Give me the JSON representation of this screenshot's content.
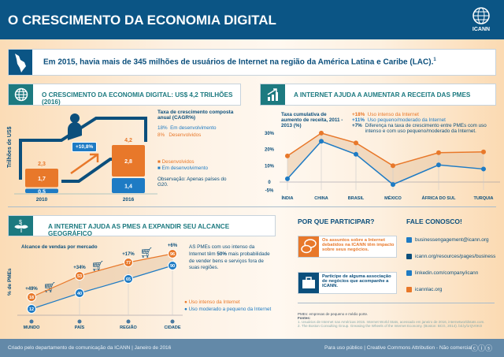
{
  "header": {
    "title": "O CRESCIMENTO DA ECONOMIA DIGITAL",
    "logo_text": "ICANN"
  },
  "banner": {
    "text": "Em 2015, havia mais de 345 milhões de usuários de Internet na região da América Latina e Caribe (LAC).",
    "footnote": "1"
  },
  "section1": {
    "title": "O CRESCIMENTO DA ECONOMIA DIGITAL: US$ 4,2 TRILHÕES (2016)",
    "chart_data": {
      "type": "bar",
      "stacked": true,
      "ylabel": "Trilhões de US$",
      "categories": [
        "2010",
        "2016"
      ],
      "series": [
        {
          "name": "Em desenvolvimento",
          "values": [
            0.5,
            1.4
          ],
          "color": "#1e7bc4"
        },
        {
          "name": "Desenvolvidos",
          "values": [
            1.7,
            2.8
          ],
          "color": "#e8782a"
        }
      ],
      "value_labels": {
        "Em desenvolvimento": [
          "0,5",
          "1,4"
        ],
        "Desenvolvidos": [
          "1,7",
          "2,8"
        ]
      },
      "totals": [
        "2,3",
        "4,2"
      ],
      "growth_label": "+10,8%"
    },
    "cagr_title": "Taxa de crescimento composta anual (CAGR%)",
    "cagr": [
      {
        "pct": "18%",
        "label": "Em desenvolvimento"
      },
      {
        "pct": "8%",
        "label": "Desenvolvidos"
      }
    ],
    "legend": [
      "Desenvolvidos",
      "Em desenvolvimento"
    ],
    "note": "Observação: Apenas países do G20."
  },
  "section2": {
    "title": "A INTERNET AJUDA A AUMENTAR A RECEITA DAS PMES",
    "chart_data": {
      "type": "line",
      "title": "Taxa cumulativa de aumento de receita, 2011 - 2013 (%)",
      "categories": [
        "ÍNDIA",
        "CHINA",
        "BRASIL",
        "MÉXICO",
        "ÁFRICA DO SUL",
        "TURQUIA"
      ],
      "yticks": [
        "30%",
        "20%",
        "10%",
        "0",
        "-5%"
      ],
      "ylim": [
        -5,
        30
      ],
      "series": [
        {
          "name": "Uso intenso da Internet",
          "values": [
            16,
            30,
            24,
            10,
            18,
            18.5
          ],
          "color": "#e8782a"
        },
        {
          "name": "Uso pequeno/moderado da Internet",
          "values": [
            2,
            25,
            17,
            -1.5,
            10.5,
            8
          ],
          "color": "#1e7bc4"
        }
      ]
    },
    "legend": [
      {
        "pct": "+18%",
        "label": "Uso intenso da Internet"
      },
      {
        "pct": "+11%",
        "label": "Uso pequeno/moderado da Internet"
      },
      {
        "pct": "+7%",
        "label": "Diferença na taxa de crescimento entre PMEs com uso intenso e com uso pequeno/moderado da Internet."
      }
    ]
  },
  "section3": {
    "title": "A INTERNET AJUDA AS PMES A EXPANDIR SEU ALCANCE GEOGRÁFICO",
    "chart_data": {
      "type": "line",
      "title": "Alcance de vendas por mercado",
      "ylabel": "% de PMEs",
      "categories": [
        "MUNDO",
        "PAÍS",
        "REGIÃO",
        "CIDADE"
      ],
      "series": [
        {
          "name": "Uso intenso da Internet",
          "values": [
            18,
            53,
            77,
            96
          ],
          "color": "#e8782a"
        },
        {
          "name": "Uso moderado a pequeno da Internet",
          "values": [
            12,
            40,
            65,
            90
          ],
          "color": "#1e7bc4"
        }
      ],
      "differences": [
        "+49%",
        "+34%",
        "+17%",
        "+6%"
      ]
    },
    "text_pre": "AS PMEs com uso intenso da Internet têm ",
    "text_bold": "50%",
    "text_post": " mais probabilidade de vender bens e serviços fora de suas regiões."
  },
  "participate": {
    "title": "POR QUE PARTICIPAR?",
    "items": [
      "Os assuntos sobre a Internet debatidos na ICANN têm impacto sobre seus negócios.",
      "Participe de alguma associação de negócios que acompanhe a ICANN."
    ]
  },
  "contact": {
    "title": "FALE CONOSCO!",
    "links": [
      "businessengagement@icann.org",
      "icann.org/resources/pages/business",
      "linkedin.com/company/icann",
      "icannlac.org"
    ]
  },
  "notes": {
    "pmes": "PMEs: empresas de pequeno e médio porte.",
    "sources_label": "Fontes:",
    "sources": [
      "1. Usuários de Internet nas Américas 2015. Internet World Stats, acessado em janeiro de 2016, internetworldstats.com.",
      "2. The Boston Consulting Group. Greasing the Wheels of the Internet Economy. (Boston: BCG, 2014). bit.ly/1rQV0KO"
    ]
  },
  "footer": {
    "left": "Criado pelo departamento de comunicação da ICANN | Janeiro de 2016",
    "right": "Para uso público | Creative Commons Attribution - Não comercial"
  }
}
